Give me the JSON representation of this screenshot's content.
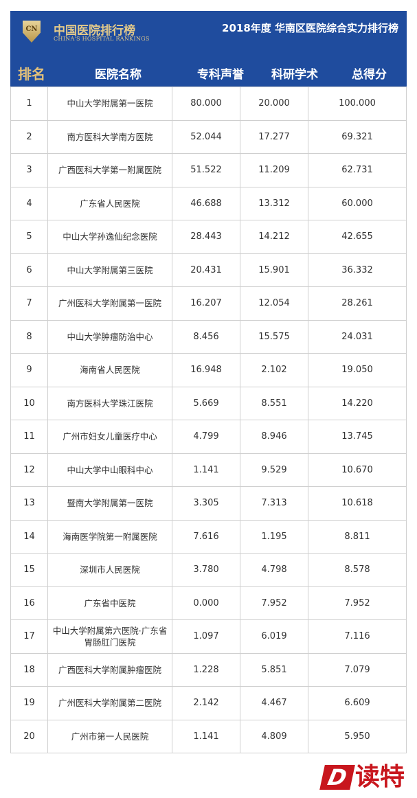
{
  "header": {
    "logo_text": "CN",
    "brand": "中国医院排行榜",
    "brand_sub": "CHINA'S HOSPITAL RANKINGS",
    "title": "2018年度 华南区医院综合实力排行榜"
  },
  "columns": [
    "排名",
    "医院名称",
    "专科声誉",
    "科研学术",
    "总得分"
  ],
  "rows": [
    [
      "1",
      "中山大学附属第一医院",
      "80.000",
      "20.000",
      "100.000"
    ],
    [
      "2",
      "南方医科大学南方医院",
      "52.044",
      "17.277",
      "69.321"
    ],
    [
      "3",
      "广西医科大学第一附属医院",
      "51.522",
      "11.209",
      "62.731"
    ],
    [
      "4",
      "广东省人民医院",
      "46.688",
      "13.312",
      "60.000"
    ],
    [
      "5",
      "中山大学孙逸仙纪念医院",
      "28.443",
      "14.212",
      "42.655"
    ],
    [
      "6",
      "中山大学附属第三医院",
      "20.431",
      "15.901",
      "36.332"
    ],
    [
      "7",
      "广州医科大学附属第一医院",
      "16.207",
      "12.054",
      "28.261"
    ],
    [
      "8",
      "中山大学肿瘤防治中心",
      "8.456",
      "15.575",
      "24.031"
    ],
    [
      "9",
      "海南省人民医院",
      "16.948",
      "2.102",
      "19.050"
    ],
    [
      "10",
      "南方医科大学珠江医院",
      "5.669",
      "8.551",
      "14.220"
    ],
    [
      "11",
      "广州市妇女儿童医疗中心",
      "4.799",
      "8.946",
      "13.745"
    ],
    [
      "12",
      "中山大学中山眼科中心",
      "1.141",
      "9.529",
      "10.670"
    ],
    [
      "13",
      "暨南大学附属第一医院",
      "3.305",
      "7.313",
      "10.618"
    ],
    [
      "14",
      "海南医学院第一附属医院",
      "7.616",
      "1.195",
      "8.811"
    ],
    [
      "15",
      "深圳市人民医院",
      "3.780",
      "4.798",
      "8.578"
    ],
    [
      "16",
      "广东省中医院",
      "0.000",
      "7.952",
      "7.952"
    ],
    [
      "17",
      "中山大学附属第六医院·广东省胃肠肛门医院",
      "1.097",
      "6.019",
      "7.116"
    ],
    [
      "18",
      "广西医科大学附属肿瘤医院",
      "1.228",
      "5.851",
      "7.079"
    ],
    [
      "19",
      "广州医科大学附属第二医院",
      "2.142",
      "4.467",
      "6.609"
    ],
    [
      "20",
      "广州市第一人民医院",
      "1.141",
      "4.809",
      "5.950"
    ]
  ],
  "watermark": {
    "letter": "D",
    "text": "读特"
  },
  "colors": {
    "banner": "#1f4c9e",
    "gold": "#e2c07a",
    "watermark": "#c8161d"
  }
}
